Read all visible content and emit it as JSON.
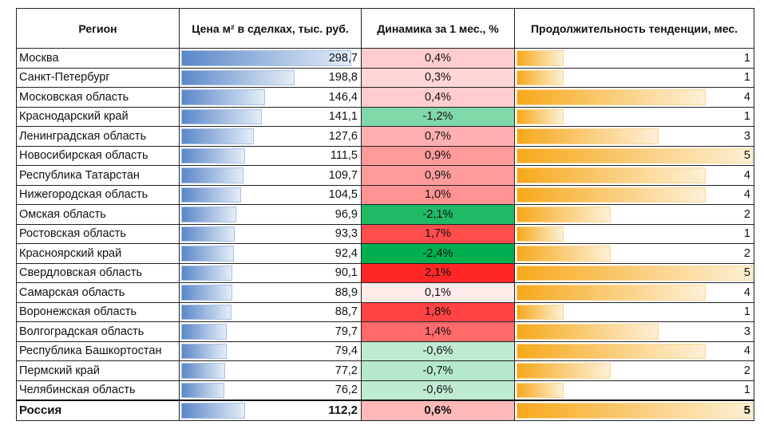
{
  "chart_data": {
    "type": "table",
    "columns": [
      "Регион",
      "Цена м² в сделках, тыс. руб.",
      "Динамика за 1 мес., %",
      "Продолжительность тенденции, мес."
    ],
    "rows": [
      {
        "region": "Москва",
        "price": "298,7",
        "price_value": 298.7,
        "dyn": "0,4%",
        "dyn_value": 0.4,
        "trend": "1",
        "trend_value": 1
      },
      {
        "region": "Санкт-Петербург",
        "price": "198,8",
        "price_value": 198.8,
        "dyn": "0,3%",
        "dyn_value": 0.3,
        "trend": "1",
        "trend_value": 1
      },
      {
        "region": "Московская область",
        "price": "146,4",
        "price_value": 146.4,
        "dyn": "0,4%",
        "dyn_value": 0.4,
        "trend": "4",
        "trend_value": 4
      },
      {
        "region": "Краснодарский край",
        "price": "141,1",
        "price_value": 141.1,
        "dyn": "-1,2%",
        "dyn_value": -1.2,
        "trend": "1",
        "trend_value": 1
      },
      {
        "region": "Ленинградская область",
        "price": "127,6",
        "price_value": 127.6,
        "dyn": "0,7%",
        "dyn_value": 0.7,
        "trend": "3",
        "trend_value": 3
      },
      {
        "region": "Новосибирская область",
        "price": "111,5",
        "price_value": 111.5,
        "dyn": "0,9%",
        "dyn_value": 0.9,
        "trend": "5",
        "trend_value": 5
      },
      {
        "region": "Республика Татарстан",
        "price": "109,7",
        "price_value": 109.7,
        "dyn": "0,9%",
        "dyn_value": 0.9,
        "trend": "4",
        "trend_value": 4
      },
      {
        "region": "Нижегородская область",
        "price": "104,5",
        "price_value": 104.5,
        "dyn": "1,0%",
        "dyn_value": 1.0,
        "trend": "4",
        "trend_value": 4
      },
      {
        "region": "Омская область",
        "price": "96,9",
        "price_value": 96.9,
        "dyn": "-2,1%",
        "dyn_value": -2.1,
        "trend": "2",
        "trend_value": 2
      },
      {
        "region": "Ростовская область",
        "price": "93,3",
        "price_value": 93.3,
        "dyn": "1,7%",
        "dyn_value": 1.7,
        "trend": "1",
        "trend_value": 1
      },
      {
        "region": "Красноярский край",
        "price": "92,4",
        "price_value": 92.4,
        "dyn": "-2,4%",
        "dyn_value": -2.4,
        "trend": "2",
        "trend_value": 2
      },
      {
        "region": "Свердловская область",
        "price": "90,1",
        "price_value": 90.1,
        "dyn": "2,1%",
        "dyn_value": 2.1,
        "trend": "5",
        "trend_value": 5
      },
      {
        "region": "Самарская область",
        "price": "88,9",
        "price_value": 88.9,
        "dyn": "0,1%",
        "dyn_value": 0.1,
        "trend": "4",
        "trend_value": 4
      },
      {
        "region": "Воронежская область",
        "price": "88,7",
        "price_value": 88.7,
        "dyn": "1,8%",
        "dyn_value": 1.8,
        "trend": "1",
        "trend_value": 1
      },
      {
        "region": "Волгоградская область",
        "price": "79,7",
        "price_value": 79.7,
        "dyn": "1,4%",
        "dyn_value": 1.4,
        "trend": "3",
        "trend_value": 3
      },
      {
        "region": "Республика Башкортостан",
        "price": "79,4",
        "price_value": 79.4,
        "dyn": "-0,6%",
        "dyn_value": -0.6,
        "trend": "4",
        "trend_value": 4
      },
      {
        "region": "Пермский край",
        "price": "77,2",
        "price_value": 77.2,
        "dyn": "-0,7%",
        "dyn_value": -0.7,
        "trend": "2",
        "trend_value": 2
      },
      {
        "region": "Челябинская область",
        "price": "76,2",
        "price_value": 76.2,
        "dyn": "-0,6%",
        "dyn_value": -0.6,
        "trend": "1",
        "trend_value": 1
      }
    ],
    "total": {
      "region": "Россия",
      "price": "112,2",
      "price_value": 112.2,
      "dyn": "0,6%",
      "dyn_value": 0.6,
      "trend": "5",
      "trend_value": 5
    },
    "price_bar_max": 298.7,
    "trend_bar_max": 5,
    "colors": {
      "price_bar": "#5b87c8",
      "trend_bar": "#f7a81b",
      "dyn_positive_max": "#ff1f1f",
      "dyn_negative_max": "#00b050",
      "dyn_positive_limit": 2.1,
      "dyn_negative_limit": -2.4
    }
  }
}
